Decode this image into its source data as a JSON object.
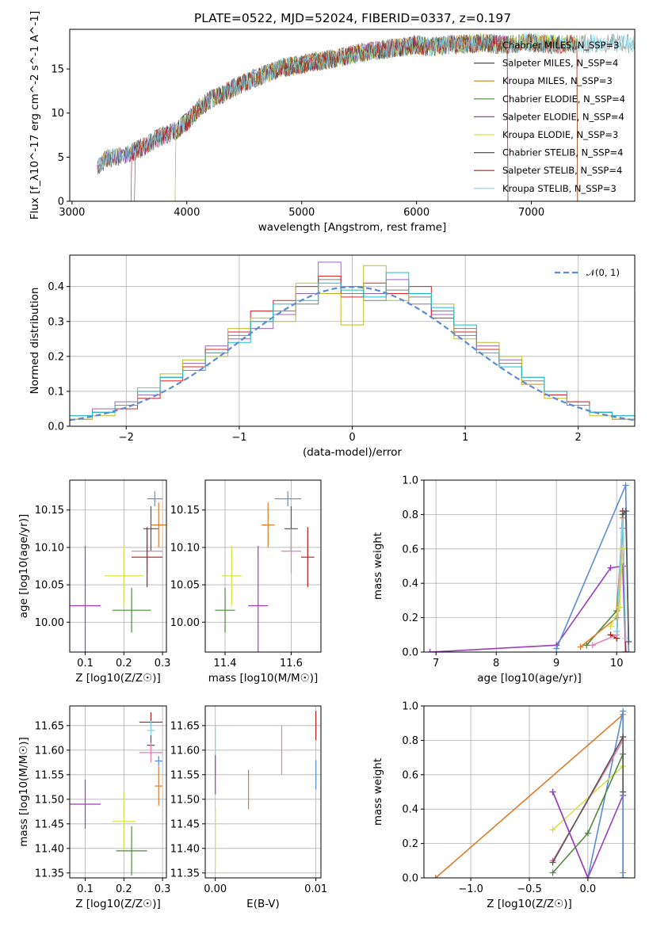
{
  "title": "PLATE=0522, MJD=52024, FIBERID=0337, z=0.197",
  "colors": [
    "#7f7f7f",
    "#9467bd",
    "#ff7f0e",
    "#2ca02c",
    "#8c564b",
    "#e377c2",
    "#bcbd22",
    "#d62728",
    "#17becf"
  ],
  "chart_data": [
    {
      "id": "spectrum",
      "type": "line",
      "xlabel": "wavelength [Angstrom, rest frame]",
      "ylabel": "Flux [f_λ10^-17 erg cm^-2 s^-1 A^-1]",
      "xlim": [
        2980,
        7900
      ],
      "ylim": [
        0,
        19.5
      ],
      "xticks": [
        3000,
        4000,
        5000,
        6000,
        7000
      ],
      "yticks": [
        0,
        5,
        10,
        15
      ],
      "grid": false,
      "legend_position": "right",
      "legend": [
        {
          "label": "Chabrier MILES, N_SSP=3",
          "color": "#7f7f7f"
        },
        {
          "label": "Salpeter MILES, N_SSP=4",
          "color": "#4d4d4d"
        },
        {
          "label": "Kroupa MILES, N_SSP=3",
          "color": "#c8801c"
        },
        {
          "label": "Chabrier ELODIE, N_SSP=4",
          "color": "#4b8b3b"
        },
        {
          "label": "Salpeter ELODIE, N_SSP=4",
          "color": "#9a3fb8"
        },
        {
          "label": "Kroupa ELODIE, N_SSP=3",
          "color": "#d4e34a"
        },
        {
          "label": "Chabrier STELIB, N_SSP=4",
          "color": "#555555"
        },
        {
          "label": "Salpeter STELIB, N_SSP=4",
          "color": "#b11b1b"
        },
        {
          "label": "Kroupa STELIB, N_SSP=3",
          "color": "#7fd3e3"
        }
      ],
      "x": [
        3220,
        3300,
        3400,
        3500,
        3600,
        3700,
        3800,
        3900,
        4000,
        4100,
        4200,
        4300,
        4400,
        4500,
        4600,
        4700,
        4800,
        4900,
        5000,
        5100,
        5200,
        5300,
        5400,
        5500,
        5600,
        5700,
        5800,
        5900,
        6000,
        6100,
        6200,
        6300,
        6400,
        6500,
        6600,
        6700,
        6800,
        6900,
        7000,
        7100,
        7200,
        7300,
        7400,
        7500
      ],
      "y": [
        4.0,
        4.8,
        5.0,
        5.4,
        6.0,
        6.8,
        7.5,
        8.0,
        9.0,
        10.5,
        11.5,
        12.0,
        12.8,
        13.5,
        14.0,
        14.5,
        15.0,
        15.3,
        15.5,
        15.8,
        16.0,
        16.2,
        16.5,
        16.8,
        17.0,
        17.2,
        17.4,
        17.5,
        17.8,
        17.5,
        17.6,
        17.8,
        17.8,
        17.9,
        18.0,
        17.8,
        17.8,
        17.9,
        18.0,
        17.9,
        17.8,
        17.9,
        17.8,
        17.9
      ]
    },
    {
      "id": "residuals",
      "type": "histogram",
      "xlabel": "(data-model)/error",
      "ylabel": "Normed distribution",
      "xlim": [
        -2.5,
        2.5
      ],
      "ylim": [
        0,
        0.49
      ],
      "xticks": [
        -2,
        -1,
        0,
        1,
        2
      ],
      "yticks": [
        0.0,
        0.1,
        0.2,
        0.3,
        0.4
      ],
      "grid": true,
      "legend_position": "top-right",
      "legend": [
        {
          "label": "𝒩(0, 1)",
          "color": "#5b8bd6"
        }
      ],
      "bin_edges": [
        -2.5,
        -2.3,
        -2.1,
        -1.9,
        -1.7,
        -1.5,
        -1.3,
        -1.1,
        -0.9,
        -0.7,
        -0.5,
        -0.3,
        -0.1,
        0.1,
        0.3,
        0.5,
        0.7,
        0.9,
        1.1,
        1.3,
        1.5,
        1.7,
        1.9,
        2.1,
        2.3,
        2.5
      ],
      "series": [
        {
          "color": "#7f7f7f",
          "values": [
            0.02,
            0.04,
            0.06,
            0.1,
            0.14,
            0.17,
            0.21,
            0.26,
            0.3,
            0.33,
            0.35,
            0.42,
            0.38,
            0.36,
            0.39,
            0.37,
            0.33,
            0.28,
            0.22,
            0.18,
            0.13,
            0.1,
            0.07,
            0.04,
            0.03
          ]
        },
        {
          "color": "#9467bd",
          "values": [
            0.03,
            0.05,
            0.07,
            0.09,
            0.14,
            0.18,
            0.23,
            0.25,
            0.28,
            0.32,
            0.38,
            0.47,
            0.4,
            0.38,
            0.42,
            0.35,
            0.32,
            0.26,
            0.23,
            0.19,
            0.14,
            0.09,
            0.06,
            0.04,
            0.02
          ]
        },
        {
          "color": "#d62728",
          "values": [
            0.02,
            0.04,
            0.05,
            0.08,
            0.13,
            0.17,
            0.22,
            0.27,
            0.33,
            0.36,
            0.4,
            0.43,
            0.37,
            0.41,
            0.38,
            0.4,
            0.31,
            0.27,
            0.22,
            0.17,
            0.12,
            0.09,
            0.07,
            0.04,
            0.02
          ]
        },
        {
          "color": "#bcbd22",
          "values": [
            0.02,
            0.03,
            0.06,
            0.11,
            0.15,
            0.19,
            0.2,
            0.28,
            0.31,
            0.3,
            0.41,
            0.38,
            0.29,
            0.46,
            0.36,
            0.38,
            0.35,
            0.25,
            0.24,
            0.2,
            0.12,
            0.08,
            0.06,
            0.03,
            0.02
          ]
        },
        {
          "color": "#17becf",
          "values": [
            0.03,
            0.04,
            0.06,
            0.1,
            0.14,
            0.16,
            0.21,
            0.24,
            0.3,
            0.35,
            0.36,
            0.41,
            0.39,
            0.37,
            0.44,
            0.38,
            0.34,
            0.29,
            0.21,
            0.17,
            0.14,
            0.1,
            0.06,
            0.04,
            0.03
          ]
        }
      ],
      "normal_curve": {
        "mean": 0,
        "sigma": 1
      }
    },
    {
      "id": "age-vs-Z",
      "type": "scatter",
      "xlabel": "Z [log10(Z/Z☉)]",
      "ylabel": "age [log10(age/yr)]",
      "xlim": [
        0.06,
        0.31
      ],
      "ylim": [
        9.96,
        10.19
      ],
      "xticks": [
        0.1,
        0.2,
        0.3
      ],
      "yticks": [
        10.0,
        10.05,
        10.1,
        10.15
      ],
      "grid": true,
      "points": [
        {
          "x": 0.28,
          "y": 10.165,
          "xerr": 0.02,
          "yerr": 0.01,
          "color": "#5b8bd6"
        },
        {
          "x": 0.27,
          "y": 10.125,
          "xerr": 0.02,
          "yerr": 0.03,
          "color": "#555555"
        },
        {
          "x": 0.29,
          "y": 10.13,
          "xerr": 0.02,
          "yerr": 0.03,
          "color": "#e07b2a"
        },
        {
          "x": 0.26,
          "y": 10.095,
          "xerr": 0.04,
          "yerr": 0.03,
          "color": "#e87fb1"
        },
        {
          "x": 0.26,
          "y": 10.087,
          "xerr": 0.04,
          "yerr": 0.04,
          "color": "#b11b1b"
        },
        {
          "x": 0.2,
          "y": 10.062,
          "xerr": 0.05,
          "yerr": 0.04,
          "color": "#d4e34a"
        },
        {
          "x": 0.1,
          "y": 10.022,
          "xerr": 0.04,
          "yerr": 0.08,
          "color": "#9a3fb8"
        },
        {
          "x": 0.22,
          "y": 10.016,
          "xerr": 0.05,
          "yerr": 0.03,
          "color": "#4b8b3b"
        }
      ]
    },
    {
      "id": "age-vs-mass",
      "type": "scatter",
      "xlabel": "mass [log10(M/M☉)]",
      "ylabel": "",
      "xlim": [
        11.34,
        11.69
      ],
      "ylim": [
        9.96,
        10.19
      ],
      "xticks": [
        11.4,
        11.6
      ],
      "yticks": [
        10.0,
        10.05,
        10.1,
        10.15
      ],
      "grid": true,
      "points": [
        {
          "x": 11.59,
          "y": 10.165,
          "xerr": 0.04,
          "yerr": 0.01,
          "color": "#5b8bd6"
        },
        {
          "x": 11.6,
          "y": 10.125,
          "xerr": 0.02,
          "yerr": 0.03,
          "color": "#555555"
        },
        {
          "x": 11.53,
          "y": 10.13,
          "xerr": 0.02,
          "yerr": 0.03,
          "color": "#e07b2a"
        },
        {
          "x": 11.6,
          "y": 10.095,
          "xerr": 0.03,
          "yerr": 0.03,
          "color": "#e87fb1"
        },
        {
          "x": 11.65,
          "y": 10.087,
          "xerr": 0.02,
          "yerr": 0.04,
          "color": "#b11b1b"
        },
        {
          "x": 11.42,
          "y": 10.062,
          "xerr": 0.03,
          "yerr": 0.04,
          "color": "#d4e34a"
        },
        {
          "x": 11.5,
          "y": 10.022,
          "xerr": 0.03,
          "yerr": 0.08,
          "color": "#9a3fb8"
        },
        {
          "x": 11.4,
          "y": 10.016,
          "xerr": 0.03,
          "yerr": 0.03,
          "color": "#4b8b3b"
        }
      ]
    },
    {
      "id": "massweight-vs-age",
      "type": "line",
      "xlabel": "age [log10(age/yr)]",
      "ylabel": "mass weight",
      "xlim": [
        6.8,
        10.3
      ],
      "ylim": [
        0,
        1
      ],
      "xticks": [
        7,
        8,
        9,
        10
      ],
      "yticks": [
        0.0,
        0.2,
        0.4,
        0.6,
        0.8,
        1.0
      ],
      "grid": true,
      "series": [
        {
          "color": "#9a3fb8",
          "x": [
            6.9,
            9.0,
            9.9,
            10.1,
            10.15
          ],
          "y": [
            0.0,
            0.04,
            0.49,
            0.5,
            0.0
          ]
        },
        {
          "color": "#5b8bd6",
          "x": [
            9.0,
            10.15,
            10.2
          ],
          "y": [
            0.02,
            0.97,
            0.0
          ]
        },
        {
          "color": "#b11b1b",
          "x": [
            9.9,
            10.0,
            10.1,
            10.15
          ],
          "y": [
            0.1,
            0.08,
            0.82,
            0.0
          ]
        },
        {
          "color": "#4b8b3b",
          "x": [
            9.5,
            10.0,
            10.1
          ],
          "y": [
            0.04,
            0.24,
            0.72
          ]
        },
        {
          "color": "#e07b2a",
          "x": [
            9.4,
            10.0,
            10.1
          ],
          "y": [
            0.03,
            0.2,
            0.78
          ]
        },
        {
          "color": "#e87fb1",
          "x": [
            9.6,
            10.0,
            10.1
          ],
          "y": [
            0.04,
            0.1,
            0.72
          ]
        },
        {
          "color": "#7fd3e3",
          "x": [
            10.0,
            10.1,
            10.15
          ],
          "y": [
            0.12,
            0.8,
            0.08
          ]
        },
        {
          "color": "#d4e34a",
          "x": [
            9.9,
            10.05,
            10.1
          ],
          "y": [
            0.15,
            0.26,
            0.6
          ]
        },
        {
          "color": "#555555",
          "x": [
            10.1,
            10.15,
            10.2
          ],
          "y": [
            0.8,
            0.82,
            0.06
          ]
        }
      ]
    },
    {
      "id": "mass-vs-Z",
      "type": "scatter",
      "xlabel": "Z [log10(Z/Z☉)]",
      "ylabel": "mass [log10(M/M☉)]",
      "xlim": [
        0.06,
        0.31
      ],
      "ylim": [
        11.34,
        11.69
      ],
      "xticks": [
        0.1,
        0.2,
        0.3
      ],
      "yticks": [
        11.35,
        11.4,
        11.45,
        11.5,
        11.55,
        11.6,
        11.65
      ],
      "grid": true,
      "points": [
        {
          "x": 0.27,
          "y": 11.657,
          "xerr": 0.03,
          "yerr": 0.02,
          "color": "#b11b1b"
        },
        {
          "x": 0.27,
          "y": 11.64,
          "xerr": 0.01,
          "yerr": 0.02,
          "color": "#7fd3e3"
        },
        {
          "x": 0.27,
          "y": 11.61,
          "xerr": 0.01,
          "yerr": 0.02,
          "color": "#555555"
        },
        {
          "x": 0.27,
          "y": 11.595,
          "xerr": 0.03,
          "yerr": 0.02,
          "color": "#e87fb1"
        },
        {
          "x": 0.29,
          "y": 11.578,
          "xerr": 0.01,
          "yerr": 0.01,
          "color": "#5b8bd6"
        },
        {
          "x": 0.29,
          "y": 11.527,
          "xerr": 0.01,
          "yerr": 0.04,
          "color": "#e07b2a"
        },
        {
          "x": 0.1,
          "y": 11.49,
          "xerr": 0.04,
          "yerr": 0.05,
          "color": "#9a3fb8"
        },
        {
          "x": 0.2,
          "y": 11.455,
          "xerr": 0.03,
          "yerr": 0.06,
          "color": "#d4e34a"
        },
        {
          "x": 0.22,
          "y": 11.395,
          "xerr": 0.04,
          "yerr": 0.05,
          "color": "#4b8b3b"
        }
      ]
    },
    {
      "id": "mass-vs-EBV",
      "type": "scatter",
      "xlabel": "E(B-V)",
      "ylabel": "",
      "xlim": [
        -0.001,
        0.0105
      ],
      "ylim": [
        11.34,
        11.69
      ],
      "xticks": [
        0.0,
        0.01
      ],
      "xticklabels": [
        "0.00",
        "0.01"
      ],
      "yticks": [
        11.35,
        11.4,
        11.45,
        11.5,
        11.55,
        11.6,
        11.65
      ],
      "grid": true,
      "points": [
        {
          "x": 0.01,
          "y": 11.65,
          "xerr": 0,
          "yerr": 0.03,
          "color": "#b11b1b"
        },
        {
          "x": 0.0066,
          "y": 11.6,
          "xerr": 0,
          "yerr": 0.05,
          "color": "#e87fb1"
        },
        {
          "x": 0.01,
          "y": 11.55,
          "xerr": 0,
          "yerr": 0.03,
          "color": "#5b8bd6"
        },
        {
          "x": 0.0033,
          "y": 11.52,
          "xerr": 0,
          "yerr": 0.04,
          "color": "#e07b2a"
        },
        {
          "x": 0.0,
          "y": 11.6,
          "xerr": 0,
          "yerr": 0.05,
          "color": "#7fd3e3"
        },
        {
          "x": 0.0,
          "y": 11.55,
          "xerr": 0,
          "yerr": 0.04,
          "color": "#9a3fb8"
        },
        {
          "x": 0.0,
          "y": 11.42,
          "xerr": 0,
          "yerr": 0.06,
          "color": "#d4e34a"
        }
      ]
    },
    {
      "id": "massweight-vs-Z",
      "type": "line",
      "xlabel": "Z [log10(Z/Z☉)]",
      "ylabel": "mass weight",
      "xlim": [
        -1.4,
        0.4
      ],
      "ylim": [
        0,
        1
      ],
      "xticks": [
        -1.0,
        -0.5,
        0.0
      ],
      "yticks": [
        0.0,
        0.2,
        0.4,
        0.6,
        0.8,
        1.0
      ],
      "grid": true,
      "series": [
        {
          "color": "#e07b2a",
          "x": [
            -1.3,
            0.3,
            0.3
          ],
          "y": [
            0.0,
            0.95,
            0.03
          ]
        },
        {
          "color": "#9a3fb8",
          "x": [
            -0.3,
            0.0,
            0.3,
            0.3
          ],
          "y": [
            0.5,
            0.0,
            0.48,
            0.0
          ]
        },
        {
          "color": "#5b8bd6",
          "x": [
            0.0,
            0.3,
            0.3
          ],
          "y": [
            0.0,
            0.97,
            0.0
          ]
        },
        {
          "color": "#d4e34a",
          "x": [
            -0.3,
            0.3
          ],
          "y": [
            0.28,
            0.65
          ]
        },
        {
          "color": "#4b8b3b",
          "x": [
            -0.3,
            0.0,
            0.3
          ],
          "y": [
            0.03,
            0.26,
            0.72
          ]
        },
        {
          "color": "#e87fb1",
          "x": [
            -0.3,
            0.3
          ],
          "y": [
            0.1,
            0.8
          ]
        },
        {
          "color": "#555555",
          "x": [
            -0.3,
            0.3,
            0.3
          ],
          "y": [
            0.09,
            0.82,
            0.5
          ]
        },
        {
          "color": "#9a3fb8",
          "x": [
            -0.3,
            0.0
          ],
          "y": [
            0.5,
            0.0
          ]
        }
      ]
    }
  ]
}
